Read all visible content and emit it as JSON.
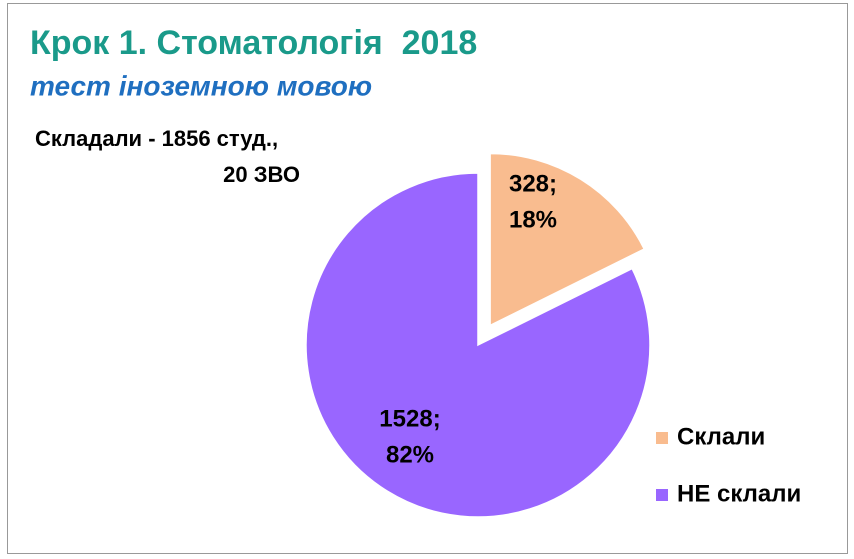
{
  "chart_data": {
    "type": "pie",
    "title": "Крок 1. Стоматологія  2018",
    "subtitle": "тест іноземною мовою",
    "annotation": [
      "Складали - 1856 студ.,",
      "20 ЗВО"
    ],
    "categories": [
      "Склали",
      "НЕ склали"
    ],
    "values": [
      328,
      1528
    ],
    "value_labels": [
      [
        "328;",
        "18%"
      ],
      [
        "1528;",
        "82%"
      ]
    ],
    "colors": [
      "#f9bc8f",
      "#9966ff"
    ],
    "legend": "right"
  }
}
